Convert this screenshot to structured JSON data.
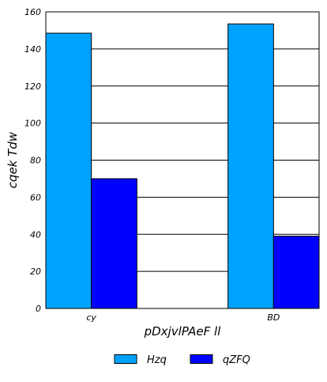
{
  "chart_data": {
    "type": "bar",
    "title": "",
    "xlabel": "pDxjvlPAeF ll",
    "ylabel": "cqek Tdw",
    "categories": [
      "cy",
      "BD"
    ],
    "series": [
      {
        "name": "Hzq",
        "values": [
          148.5,
          153.5
        ],
        "color": "#00a2ff"
      },
      {
        "name": "qZFQ",
        "values": [
          70,
          39
        ],
        "color": "#0000ff"
      }
    ],
    "ylim": [
      0,
      160
    ],
    "yticks": [
      0,
      20,
      40,
      60,
      80,
      100,
      120,
      140,
      160
    ],
    "grid": "y",
    "legend_position": "bottom-center"
  }
}
